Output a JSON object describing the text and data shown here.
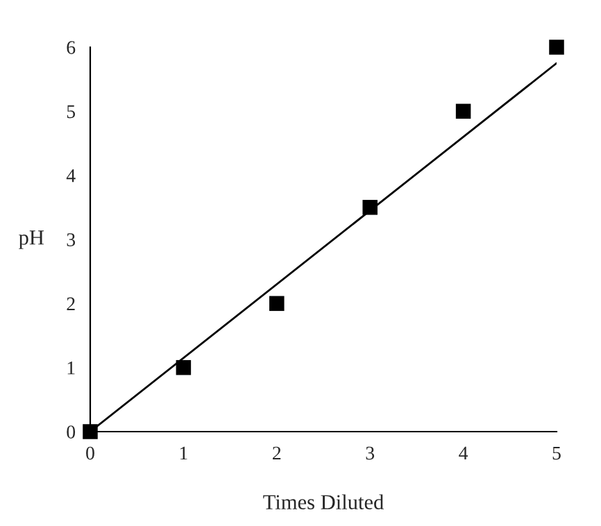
{
  "chart_data": {
    "type": "scatter",
    "xlabel": "Times Diluted",
    "ylabel": "pH",
    "series": [
      {
        "color": "#000000",
        "marker": "square",
        "x": [
          0,
          1,
          2,
          3,
          4,
          5
        ],
        "values": [
          0,
          1,
          2,
          3.5,
          5,
          6
        ]
      },
      {
        "type": "line",
        "color": "#000000",
        "marker": "none",
        "x": [
          0,
          5
        ],
        "values": [
          0,
          5.75
        ]
      }
    ],
    "xlim": [
      0,
      5
    ],
    "ylim": [
      0,
      6
    ],
    "xticks": [
      0,
      1,
      2,
      3,
      4,
      5
    ],
    "yticks": [
      0,
      1,
      2,
      3,
      4,
      5,
      6
    ],
    "grid": false,
    "legend": false
  }
}
